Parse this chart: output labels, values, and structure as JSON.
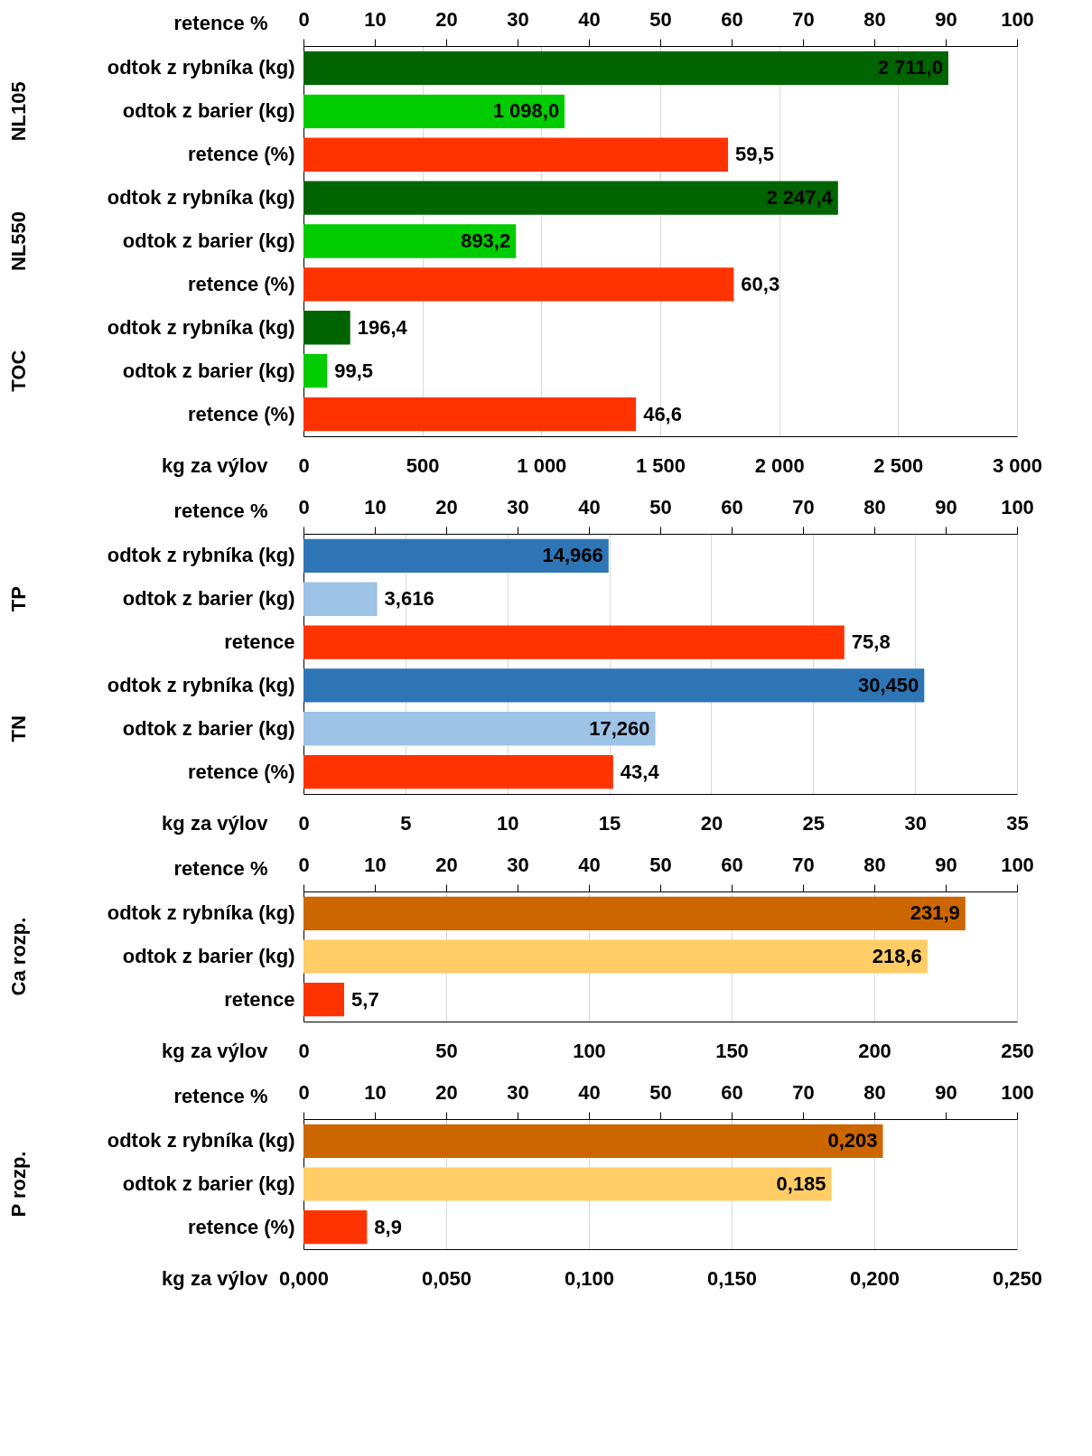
{
  "chart_data": [
    {
      "type": "bar",
      "orientation": "horizontal",
      "categories": [
        "odtok z rybníka (kg)",
        "odtok z barier (kg)",
        "retence (%)",
        "odtok z rybníka (kg)",
        "odtok z barier (kg)",
        "retence (%)",
        "odtok z rybníka (kg)",
        "odtok z barier (kg)",
        "retence (%)"
      ],
      "annotations": [
        "NL105",
        "NL550",
        "TOC"
      ],
      "series": [
        {
          "values": [
            2711.0,
            1098.0,
            null,
            2247.4,
            893.2,
            null,
            196.4,
            99.5,
            null
          ],
          "colors": [
            "#006400",
            "#00cc00",
            null,
            "#006400",
            "#00cc00",
            null,
            "#006400",
            "#00cc00",
            null
          ],
          "value_labels": [
            "2 711,0",
            "1 098,0",
            null,
            "2 247,4",
            "893,2",
            null,
            "196,4",
            "99,5",
            null
          ]
        },
        {
          "axis": "x2",
          "values": [
            null,
            null,
            59.5,
            null,
            null,
            60.3,
            null,
            null,
            46.6
          ],
          "colors": [
            null,
            null,
            "#ff3300",
            null,
            null,
            "#ff3300",
            null,
            null,
            "#ff3300"
          ],
          "value_labels": [
            null,
            null,
            "59,5",
            null,
            null,
            "60,3",
            null,
            null,
            "46,6"
          ]
        }
      ],
      "xlabel": "kg za výlov",
      "xlim": [
        0,
        3000
      ],
      "xticks": [
        0,
        500,
        {
          "value": 1000,
          "label": "1 000"
        },
        {
          "value": 1500,
          "label": "1 500"
        },
        {
          "value": 2000,
          "label": "2 000"
        },
        {
          "value": 2500,
          "label": "2 500"
        },
        {
          "value": 3000,
          "label": "3 000"
        }
      ],
      "x2label": "retence %",
      "x2lim": [
        0,
        100
      ],
      "x2ticks": [
        0,
        10,
        20,
        30,
        40,
        50,
        60,
        70,
        80,
        90,
        100
      ],
      "grid": "x"
    },
    {
      "type": "bar",
      "orientation": "horizontal",
      "categories": [
        "odtok z rybníka (kg)",
        "odtok z barier (kg)",
        "retence",
        "odtok z rybníka (kg)",
        "odtok z barier (kg)",
        "retence (%)"
      ],
      "annotations": [
        "TP",
        "TN"
      ],
      "series": [
        {
          "values": [
            14.966,
            3.616,
            null,
            30.45,
            17.26,
            null
          ],
          "colors": [
            "#2e75b6",
            "#9dc3e6",
            null,
            "#2e75b6",
            "#9dc3e6",
            null
          ],
          "value_labels": [
            "14,966",
            "3,616",
            null,
            "30,450",
            "17,260",
            null
          ]
        },
        {
          "axis": "x2",
          "values": [
            null,
            null,
            75.8,
            null,
            null,
            43.4
          ],
          "colors": [
            null,
            null,
            "#ff3300",
            null,
            null,
            "#ff3300"
          ],
          "value_labels": [
            null,
            null,
            "75,8",
            null,
            null,
            "43,4"
          ]
        }
      ],
      "xlabel": "kg za výlov",
      "xlim": [
        0,
        35
      ],
      "xticks": [
        0,
        5,
        10,
        15,
        20,
        25,
        30,
        35
      ],
      "x2label": "retence %",
      "x2lim": [
        0,
        100
      ],
      "x2ticks": [
        0,
        10,
        20,
        30,
        40,
        50,
        60,
        70,
        80,
        90,
        100
      ],
      "grid": "x"
    },
    {
      "type": "bar",
      "orientation": "horizontal",
      "categories": [
        "odtok z rybníka (kg)",
        "odtok z barier (kg)",
        "retence"
      ],
      "annotations": [
        "Ca rozp."
      ],
      "series": [
        {
          "values": [
            231.9,
            218.6,
            null
          ],
          "colors": [
            "#cc6600",
            "#ffcc66",
            null
          ],
          "value_labels": [
            "231,9",
            "218,6",
            null
          ]
        },
        {
          "axis": "x2",
          "values": [
            null,
            null,
            5.7
          ],
          "colors": [
            null,
            null,
            "#ff3300"
          ],
          "value_labels": [
            null,
            null,
            "5,7"
          ]
        }
      ],
      "xlabel": "kg za výlov",
      "xlim": [
        0,
        250
      ],
      "xticks": [
        0,
        50,
        100,
        150,
        200,
        250
      ],
      "x2label": "retence %",
      "x2lim": [
        0,
        100
      ],
      "x2ticks": [
        0,
        10,
        20,
        30,
        40,
        50,
        60,
        70,
        80,
        90,
        100
      ],
      "grid": "x"
    },
    {
      "type": "bar",
      "orientation": "horizontal",
      "categories": [
        "odtok z rybníka (kg)",
        "odtok z barier (kg)",
        "retence (%)"
      ],
      "annotations": [
        "P rozp."
      ],
      "series": [
        {
          "values": [
            0.203,
            0.185,
            null
          ],
          "colors": [
            "#cc6600",
            "#ffcc66",
            null
          ],
          "value_labels": [
            "0,203",
            "0,185",
            null
          ]
        },
        {
          "axis": "x2",
          "values": [
            null,
            null,
            8.9
          ],
          "colors": [
            null,
            null,
            "#ff3300"
          ],
          "value_labels": [
            null,
            null,
            "8,9"
          ]
        }
      ],
      "xlabel": "kg za výlov",
      "xlim": [
        0,
        0.25
      ],
      "xticks": [
        {
          "value": 0,
          "label": "0,000"
        },
        {
          "value": 0.05,
          "label": "0,050"
        },
        {
          "value": 0.1,
          "label": "0,100"
        },
        {
          "value": 0.15,
          "label": "0,150"
        },
        {
          "value": 0.2,
          "label": "0,200"
        },
        {
          "value": 0.25,
          "label": "0,250"
        }
      ],
      "x2label": "retence %",
      "x2lim": [
        0,
        100
      ],
      "x2ticks": [
        0,
        10,
        20,
        30,
        40,
        50,
        60,
        70,
        80,
        90,
        100
      ],
      "grid": "x"
    }
  ]
}
